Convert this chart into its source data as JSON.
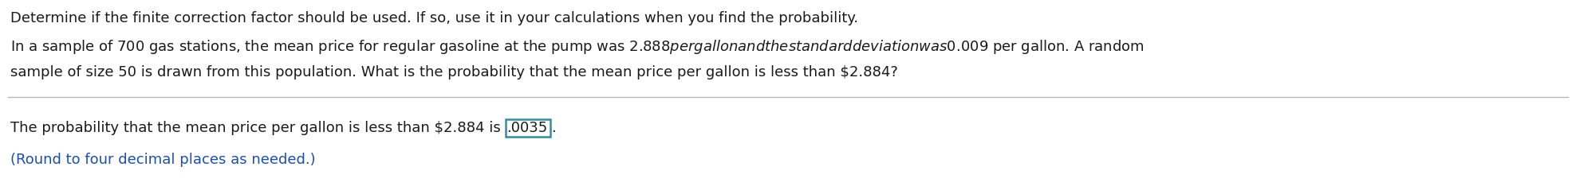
{
  "line1": "Determine if the finite correction factor should be used. If so, use it in your calculations when you find the probability.",
  "line2a": "In a sample of 700 gas stations, the mean price for regular gasoline at the pump was $2.888 per gallon and the standard deviation was $0.009 per gallon. A random",
  "line2b": "sample of size 50 is drawn from this population. What is the probability that the mean price per gallon is less than $2.884?",
  "line3_before": "The probability that the mean price per gallon is less than $2.884 is ",
  "line3_value": ".0035",
  "line3_after": ".",
  "line4": "(Round to four decimal places as needed.)",
  "bg_color": "#ffffff",
  "text_color": "#1a1a1a",
  "blue_color": "#1a4faf",
  "box_edge_color": "#2e8fa3",
  "separator_color": "#b0b8c8",
  "font_size": 13.0,
  "font_family": "DejaVu Sans"
}
